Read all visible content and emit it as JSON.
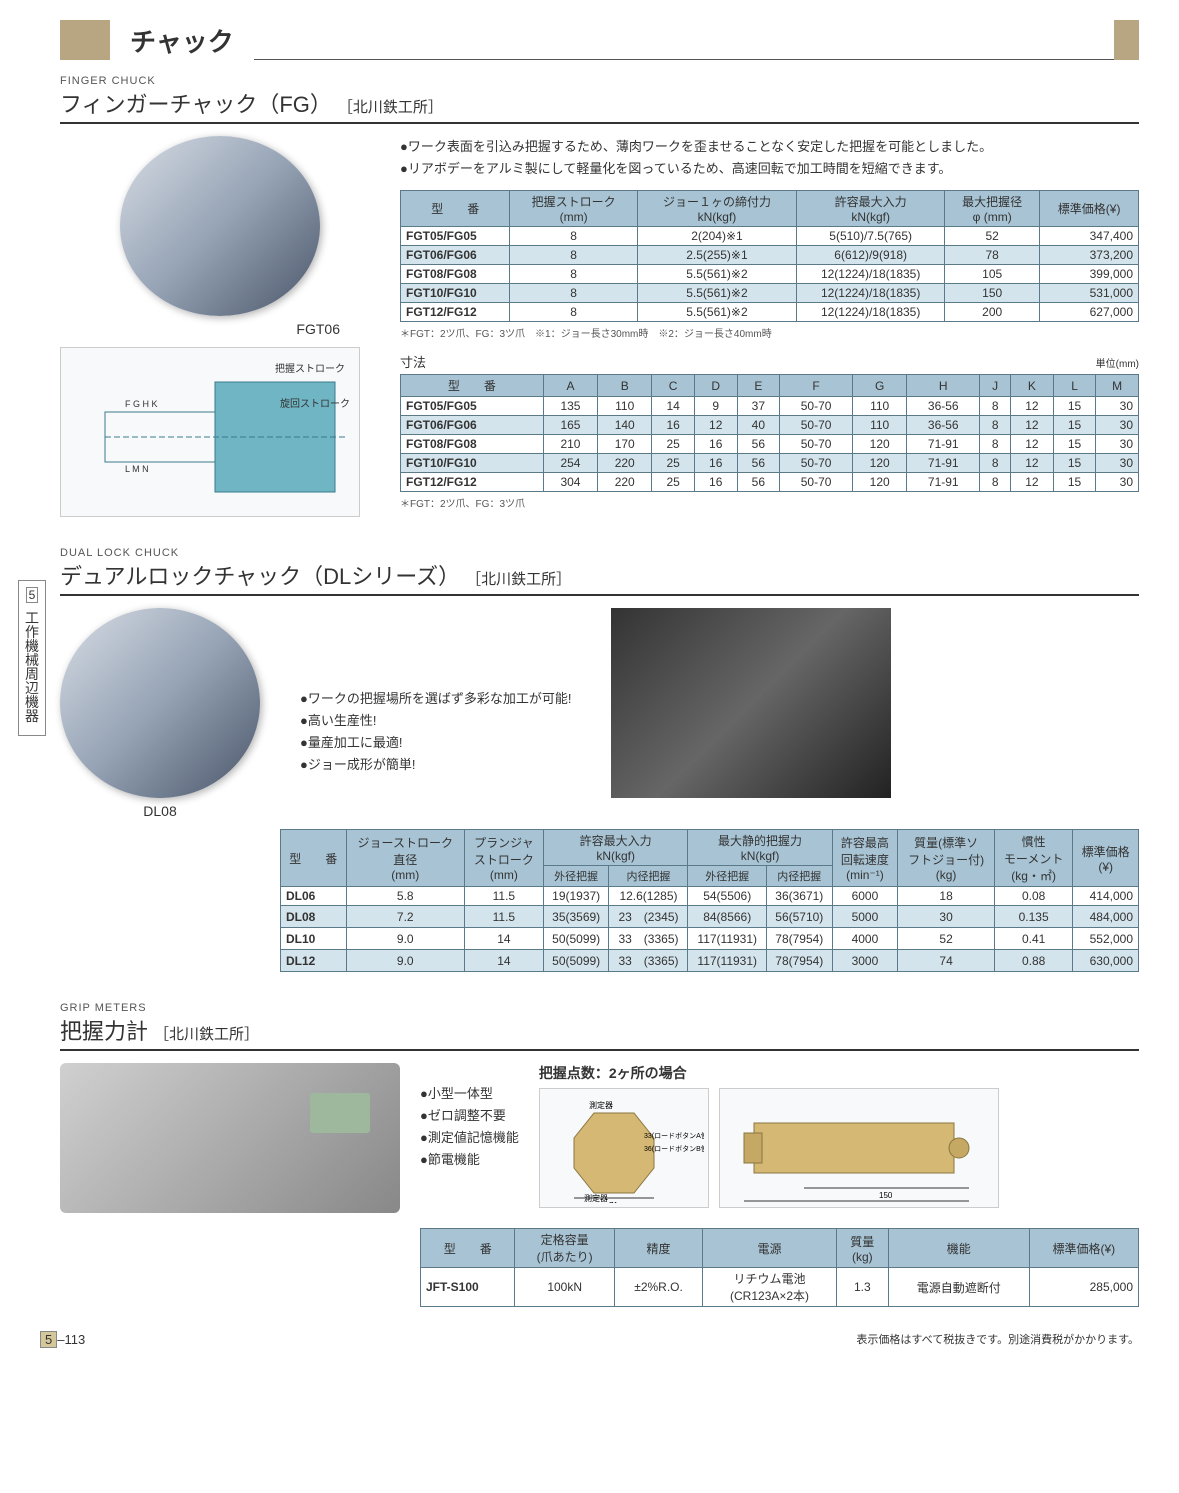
{
  "header": {
    "title": "チャック"
  },
  "sidebar": {
    "number": "5",
    "label": "工作機械周辺機器"
  },
  "footer": {
    "page": "5–113",
    "note": "表示価格はすべて税抜きです。別途消費税がかかります。"
  },
  "section1": {
    "en": "FINGER CHUCK",
    "jp": "フィンガーチャック（FG）",
    "mfr": "［北川鉄工所］",
    "img_label": "FGT06",
    "bullets": [
      "ワーク表面を引込み把握するため、薄肉ワークを歪ませることなく安定した把握を可能としました。",
      "リアボデーをアルミ製にして軽量化を図っているため、高速回転で加工時間を短縮できます。"
    ],
    "table1": {
      "headers": [
        "型　　番",
        "把握ストローク\n(mm)",
        "ジョー１ヶの締付力\nkN(kgf)",
        "許容最大入力\nkN(kgf)",
        "最大把握径\nφ (mm)",
        "標準価格(¥)"
      ],
      "rows": [
        [
          "FGT05/FG05",
          "8",
          "2(204)※1",
          "5(510)/7.5(765)",
          "52",
          "347,400"
        ],
        [
          "FGT06/FG06",
          "8",
          "2.5(255)※1",
          "6(612)/9(918)",
          "78",
          "373,200"
        ],
        [
          "FGT08/FG08",
          "8",
          "5.5(561)※2",
          "12(1224)/18(1835)",
          "105",
          "399,000"
        ],
        [
          "FGT10/FG10",
          "8",
          "5.5(561)※2",
          "12(1224)/18(1835)",
          "150",
          "531,000"
        ],
        [
          "FGT12/FG12",
          "8",
          "5.5(561)※2",
          "12(1224)/18(1835)",
          "200",
          "627,000"
        ]
      ],
      "footnote": "＊FGT：2ツ爪、FG：3ツ爪　※1：ジョー長さ30mm時　※2：ジョー長さ40mm時"
    },
    "table2": {
      "caption": "寸法",
      "unit": "単位(mm)",
      "headers": [
        "型　　番",
        "A",
        "B",
        "C",
        "D",
        "E",
        "F",
        "G",
        "H",
        "J",
        "K",
        "L",
        "M"
      ],
      "rows": [
        [
          "FGT05/FG05",
          "135",
          "110",
          "14",
          "9",
          "37",
          "50-70",
          "110",
          "36-56",
          "8",
          "12",
          "15",
          "30"
        ],
        [
          "FGT06/FG06",
          "165",
          "140",
          "16",
          "12",
          "40",
          "50-70",
          "110",
          "36-56",
          "8",
          "12",
          "15",
          "30"
        ],
        [
          "FGT08/FG08",
          "210",
          "170",
          "25",
          "16",
          "56",
          "50-70",
          "120",
          "71-91",
          "8",
          "12",
          "15",
          "30"
        ],
        [
          "FGT10/FG10",
          "254",
          "220",
          "25",
          "16",
          "56",
          "50-70",
          "120",
          "71-91",
          "8",
          "12",
          "15",
          "30"
        ],
        [
          "FGT12/FG12",
          "304",
          "220",
          "25",
          "16",
          "56",
          "50-70",
          "120",
          "71-91",
          "8",
          "12",
          "15",
          "30"
        ]
      ],
      "footnote": "＊FGT：2ツ爪、FG：3ツ爪"
    }
  },
  "section2": {
    "en": "DUAL LOCK CHUCK",
    "jp": "デュアルロックチャック（DLシリーズ）",
    "mfr": "［北川鉄工所］",
    "img_label": "DL08",
    "bullets": [
      "ワークの把握場所を選ばず多彩な加工が可能!",
      "高い生産性!",
      "量産加工に最適!",
      "ジョー成形が簡単!"
    ],
    "table": {
      "headers_r1": [
        "型　　番",
        "ジョーストローク\n直径\n(mm)",
        "プランジャ\nストローク\n(mm)",
        "許容最大入力\nkN(kgf)",
        "",
        "最大静的把握力\nkN(kgf)",
        "",
        "許容最高\n回転速度\n(min⁻¹)",
        "質量(標準ソ\nフトジョー付)\n(kg)",
        "慣性\nモーメント\n(kg・㎡)",
        "標準価格\n(¥)"
      ],
      "headers_r2": [
        "外径把握",
        "内径把握",
        "外径把握",
        "内径把握"
      ],
      "rows": [
        [
          "DL06",
          "5.8",
          "11.5",
          "19(1937)",
          "12.6(1285)",
          "54(5506)",
          "36(3671)",
          "6000",
          "18",
          "0.08",
          "414,000"
        ],
        [
          "DL08",
          "7.2",
          "11.5",
          "35(3569)",
          "23　(2345)",
          "84(8566)",
          "56(5710)",
          "5000",
          "30",
          "0.135",
          "484,000"
        ],
        [
          "DL10",
          "9.0",
          "14",
          "50(5099)",
          "33　(3365)",
          "117(11931)",
          "78(7954)",
          "4000",
          "52",
          "0.41",
          "552,000"
        ],
        [
          "DL12",
          "9.0",
          "14",
          "50(5099)",
          "33　(3365)",
          "117(11931)",
          "78(7954)",
          "3000",
          "74",
          "0.88",
          "630,000"
        ]
      ]
    }
  },
  "section3": {
    "en": "GRIP METERS",
    "jp": "把握力計",
    "mfr": "［北川鉄工所］",
    "grip_caption": "把握点数：2ヶ所の場合",
    "bullets": [
      "小型一体型",
      "ゼロ調整不要",
      "測定値記憶機能",
      "節電機能"
    ],
    "table": {
      "headers": [
        "型　　番",
        "定格容量\n(爪あたり)",
        "精度",
        "電源",
        "質量\n(kg)",
        "機能",
        "標準価格(¥)"
      ],
      "rows": [
        [
          "JFT-S100",
          "100kN",
          "±2%R.O.",
          "リチウム電池\n(CR123A×2本)",
          "1.3",
          "電源自動遮断付",
          "285,000"
        ]
      ]
    }
  }
}
